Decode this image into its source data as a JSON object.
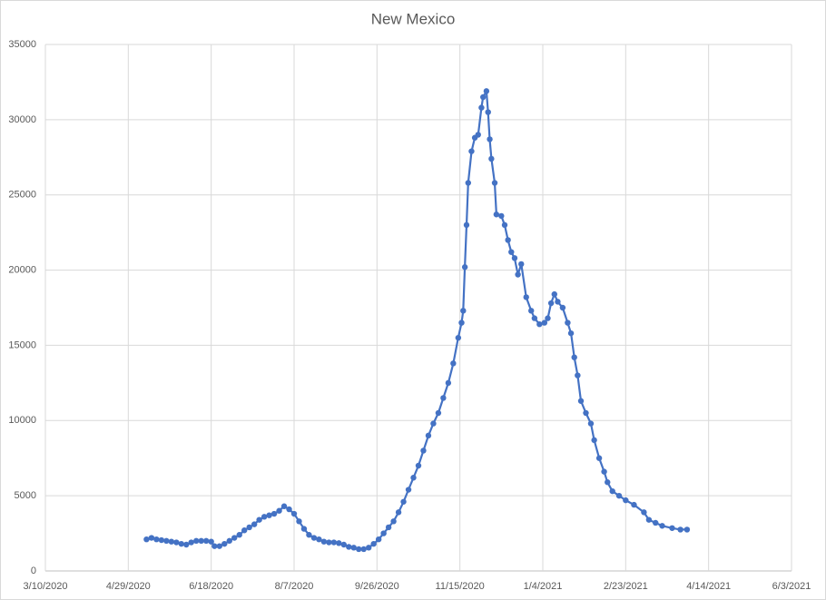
{
  "chart_data": {
    "type": "line",
    "title": "New Mexico",
    "x": [
      "5/10/2020",
      "5/13/2020",
      "5/16/2020",
      "5/19/2020",
      "5/22/2020",
      "5/25/2020",
      "5/28/2020",
      "5/31/2020",
      "6/3/2020",
      "6/6/2020",
      "6/9/2020",
      "6/12/2020",
      "6/15/2020",
      "6/18/2020",
      "6/20/2020",
      "6/23/2020",
      "6/26/2020",
      "6/29/2020",
      "7/2/2020",
      "7/5/2020",
      "7/8/2020",
      "7/11/2020",
      "7/14/2020",
      "7/17/2020",
      "7/20/2020",
      "7/23/2020",
      "7/26/2020",
      "7/29/2020",
      "8/1/2020",
      "8/4/2020",
      "8/7/2020",
      "8/10/2020",
      "8/13/2020",
      "8/16/2020",
      "8/19/2020",
      "8/22/2020",
      "8/25/2020",
      "8/28/2020",
      "8/31/2020",
      "9/3/2020",
      "9/6/2020",
      "9/9/2020",
      "9/12/2020",
      "9/15/2020",
      "9/18/2020",
      "9/21/2020",
      "9/24/2020",
      "9/27/2020",
      "9/30/2020",
      "10/3/2020",
      "10/6/2020",
      "10/9/2020",
      "10/12/2020",
      "10/15/2020",
      "10/18/2020",
      "10/21/2020",
      "10/24/2020",
      "10/27/2020",
      "10/30/2020",
      "11/2/2020",
      "11/5/2020",
      "11/8/2020",
      "11/11/2020",
      "11/14/2020",
      "11/16/2020",
      "11/17/2020",
      "11/18/2020",
      "11/19/2020",
      "11/20/2020",
      "11/22/2020",
      "11/24/2020",
      "11/26/2020",
      "11/28/2020",
      "11/29/2020",
      "12/1/2020",
      "12/2/2020",
      "12/3/2020",
      "12/4/2020",
      "12/6/2020",
      "12/7/2020",
      "12/10/2020",
      "12/12/2020",
      "12/14/2020",
      "12/16/2020",
      "12/18/2020",
      "12/20/2020",
      "12/22/2020",
      "12/25/2020",
      "12/28/2020",
      "12/30/2020",
      "1/2/2021",
      "1/5/2021",
      "1/7/2021",
      "1/9/2021",
      "1/11/2021",
      "1/13/2021",
      "1/16/2021",
      "1/19/2021",
      "1/21/2021",
      "1/23/2021",
      "1/25/2021",
      "1/27/2021",
      "1/30/2021",
      "2/2/2021",
      "2/4/2021",
      "2/7/2021",
      "2/10/2021",
      "2/12/2021",
      "2/15/2021",
      "2/19/2021",
      "2/23/2021",
      "2/28/2021",
      "3/6/2021",
      "3/9/2021",
      "3/13/2021",
      "3/17/2021",
      "3/23/2021",
      "3/28/2021",
      "4/1/2021"
    ],
    "values": [
      2100,
      2200,
      2100,
      2050,
      2000,
      1950,
      1900,
      1800,
      1750,
      1900,
      2000,
      2000,
      2000,
      1950,
      1650,
      1650,
      1800,
      2000,
      2200,
      2400,
      2700,
      2900,
      3100,
      3400,
      3600,
      3700,
      3800,
      4000,
      4300,
      4100,
      3800,
      3300,
      2800,
      2400,
      2200,
      2100,
      1950,
      1900,
      1900,
      1850,
      1750,
      1600,
      1550,
      1450,
      1450,
      1550,
      1800,
      2100,
      2500,
      2900,
      3300,
      3900,
      4600,
      5400,
      6200,
      7000,
      8000,
      9000,
      9800,
      10500,
      11500,
      12500,
      13800,
      15500,
      16500,
      17300,
      20200,
      23000,
      25800,
      27900,
      28800,
      29000,
      30800,
      31500,
      31900,
      30500,
      28700,
      27400,
      25800,
      23700,
      23600,
      23000,
      22000,
      21200,
      20800,
      19700,
      20400,
      18200,
      17300,
      16800,
      16400,
      16500,
      16800,
      17800,
      18400,
      17900,
      17500,
      16500,
      15800,
      14200,
      13000,
      11300,
      10500,
      9800,
      8700,
      7500,
      6600,
      5900,
      5300,
      5000,
      4700,
      4400,
      3900,
      3400,
      3200,
      3000,
      2850,
      2750,
      2750
    ],
    "color": "#4472c4",
    "xlim": [
      "3/10/2020",
      "6/3/2021"
    ],
    "xticks": [
      "3/10/2020",
      "4/29/2020",
      "6/18/2020",
      "8/7/2020",
      "9/26/2020",
      "11/15/2020",
      "1/4/2021",
      "2/23/2021",
      "4/14/2021",
      "6/3/2021"
    ],
    "ylim": [
      0,
      35000
    ],
    "yticks": [
      0,
      5000,
      10000,
      15000,
      20000,
      25000,
      30000,
      35000
    ],
    "grid": true
  }
}
